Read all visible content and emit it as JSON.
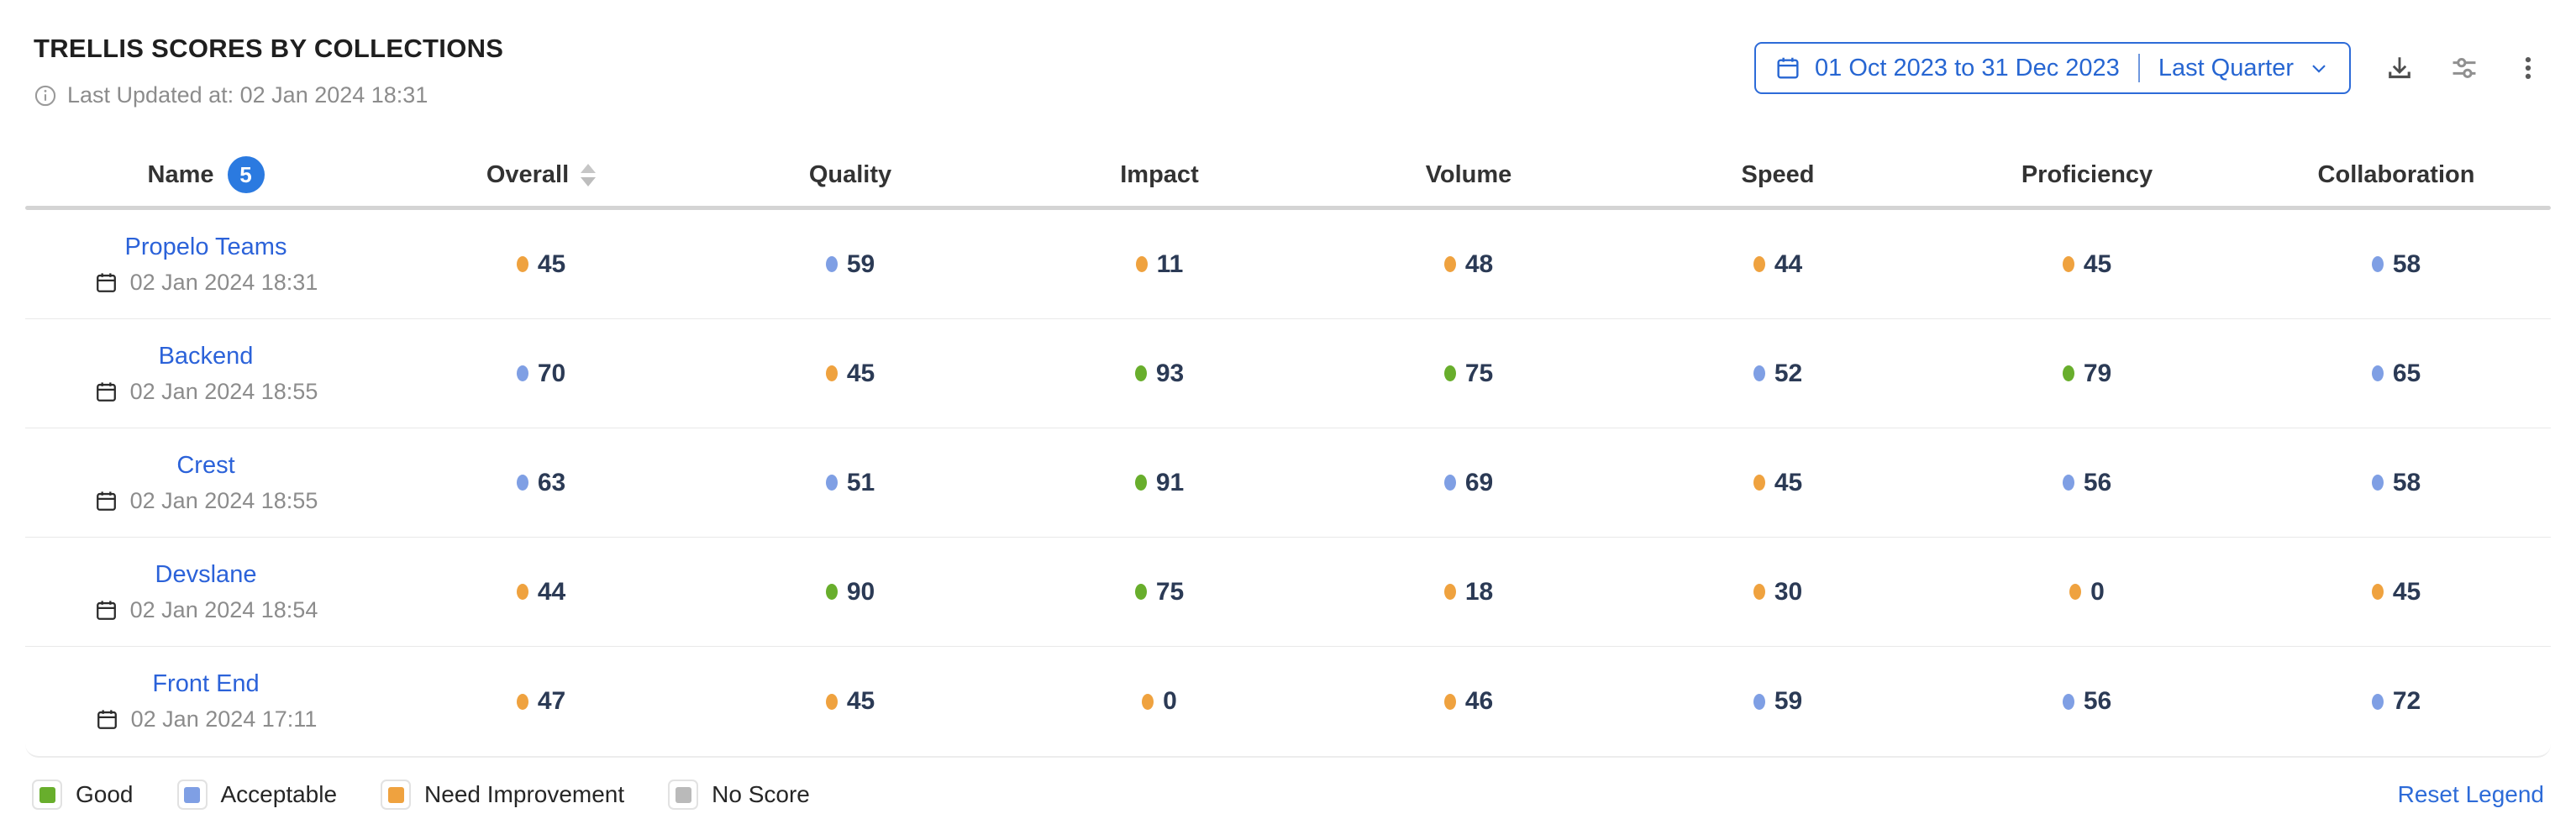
{
  "header": {
    "title": "TRELLIS SCORES BY COLLECTIONS",
    "last_updated": "Last Updated at: 02 Jan 2024 18:31",
    "date_range": "01 Oct 2023 to 31 Dec 2023",
    "date_preset": "Last Quarter"
  },
  "table": {
    "name_header": "Name",
    "name_count": "5",
    "columns": [
      "Overall",
      "Quality",
      "Impact",
      "Volume",
      "Speed",
      "Proficiency",
      "Collaboration"
    ],
    "rows": [
      {
        "name": "Propelo Teams",
        "date": "02 Jan 2024 18:31",
        "scores": [
          {
            "v": 45,
            "c": "orange"
          },
          {
            "v": 59,
            "c": "blue"
          },
          {
            "v": 11,
            "c": "orange"
          },
          {
            "v": 48,
            "c": "orange"
          },
          {
            "v": 44,
            "c": "orange"
          },
          {
            "v": 45,
            "c": "orange"
          },
          {
            "v": 58,
            "c": "blue"
          }
        ]
      },
      {
        "name": "Backend",
        "date": "02 Jan 2024 18:55",
        "scores": [
          {
            "v": 70,
            "c": "blue"
          },
          {
            "v": 45,
            "c": "orange"
          },
          {
            "v": 93,
            "c": "green"
          },
          {
            "v": 75,
            "c": "green"
          },
          {
            "v": 52,
            "c": "blue"
          },
          {
            "v": 79,
            "c": "green"
          },
          {
            "v": 65,
            "c": "blue"
          }
        ]
      },
      {
        "name": "Crest",
        "date": "02 Jan 2024 18:55",
        "scores": [
          {
            "v": 63,
            "c": "blue"
          },
          {
            "v": 51,
            "c": "blue"
          },
          {
            "v": 91,
            "c": "green"
          },
          {
            "v": 69,
            "c": "blue"
          },
          {
            "v": 45,
            "c": "orange"
          },
          {
            "v": 56,
            "c": "blue"
          },
          {
            "v": 58,
            "c": "blue"
          }
        ]
      },
      {
        "name": "Devslane",
        "date": "02 Jan 2024 18:54",
        "scores": [
          {
            "v": 44,
            "c": "orange"
          },
          {
            "v": 90,
            "c": "green"
          },
          {
            "v": 75,
            "c": "green"
          },
          {
            "v": 18,
            "c": "orange"
          },
          {
            "v": 30,
            "c": "orange"
          },
          {
            "v": 0,
            "c": "orange"
          },
          {
            "v": 45,
            "c": "orange"
          }
        ]
      },
      {
        "name": "Front End",
        "date": "02 Jan 2024 17:11",
        "scores": [
          {
            "v": 47,
            "c": "orange"
          },
          {
            "v": 45,
            "c": "orange"
          },
          {
            "v": 0,
            "c": "orange"
          },
          {
            "v": 46,
            "c": "orange"
          },
          {
            "v": 59,
            "c": "blue"
          },
          {
            "v": 56,
            "c": "blue"
          },
          {
            "v": 72,
            "c": "blue"
          }
        ]
      }
    ]
  },
  "legend": {
    "items": [
      {
        "label": "Good",
        "color": "green"
      },
      {
        "label": "Acceptable",
        "color": "blue"
      },
      {
        "label": "Need Improvement",
        "color": "orange"
      },
      {
        "label": "No Score",
        "color": "gray"
      }
    ],
    "reset_label": "Reset Legend"
  },
  "colors": {
    "green": "#68ae2c",
    "blue": "#7f9fe4",
    "orange": "#efa23f",
    "gray": "#bababa",
    "accent": "#2d6bd8"
  }
}
